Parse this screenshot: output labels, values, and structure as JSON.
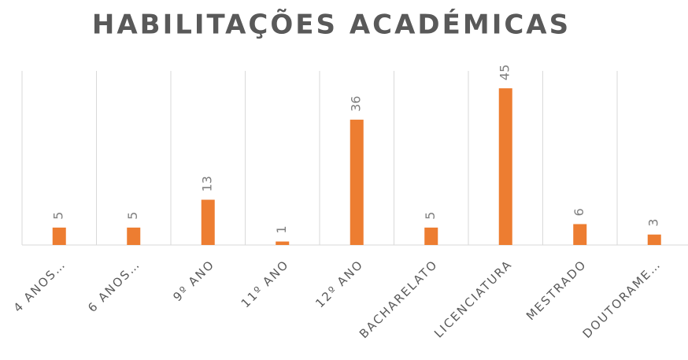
{
  "chart_data": {
    "type": "bar",
    "title": "HABILITAÇÕES ACADÉMICAS",
    "categories": [
      "4 ANOS…",
      "6 ANOS…",
      "9º ANO",
      "11º ANO",
      "12º ANO",
      "BACHARELATO",
      "LICENCIATURA",
      "MESTRADO",
      "DOUTORAME…"
    ],
    "values": [
      5,
      5,
      13,
      1,
      36,
      5,
      45,
      6,
      3
    ],
    "color": "#ed7d31",
    "ylim": [
      0,
      50
    ]
  }
}
